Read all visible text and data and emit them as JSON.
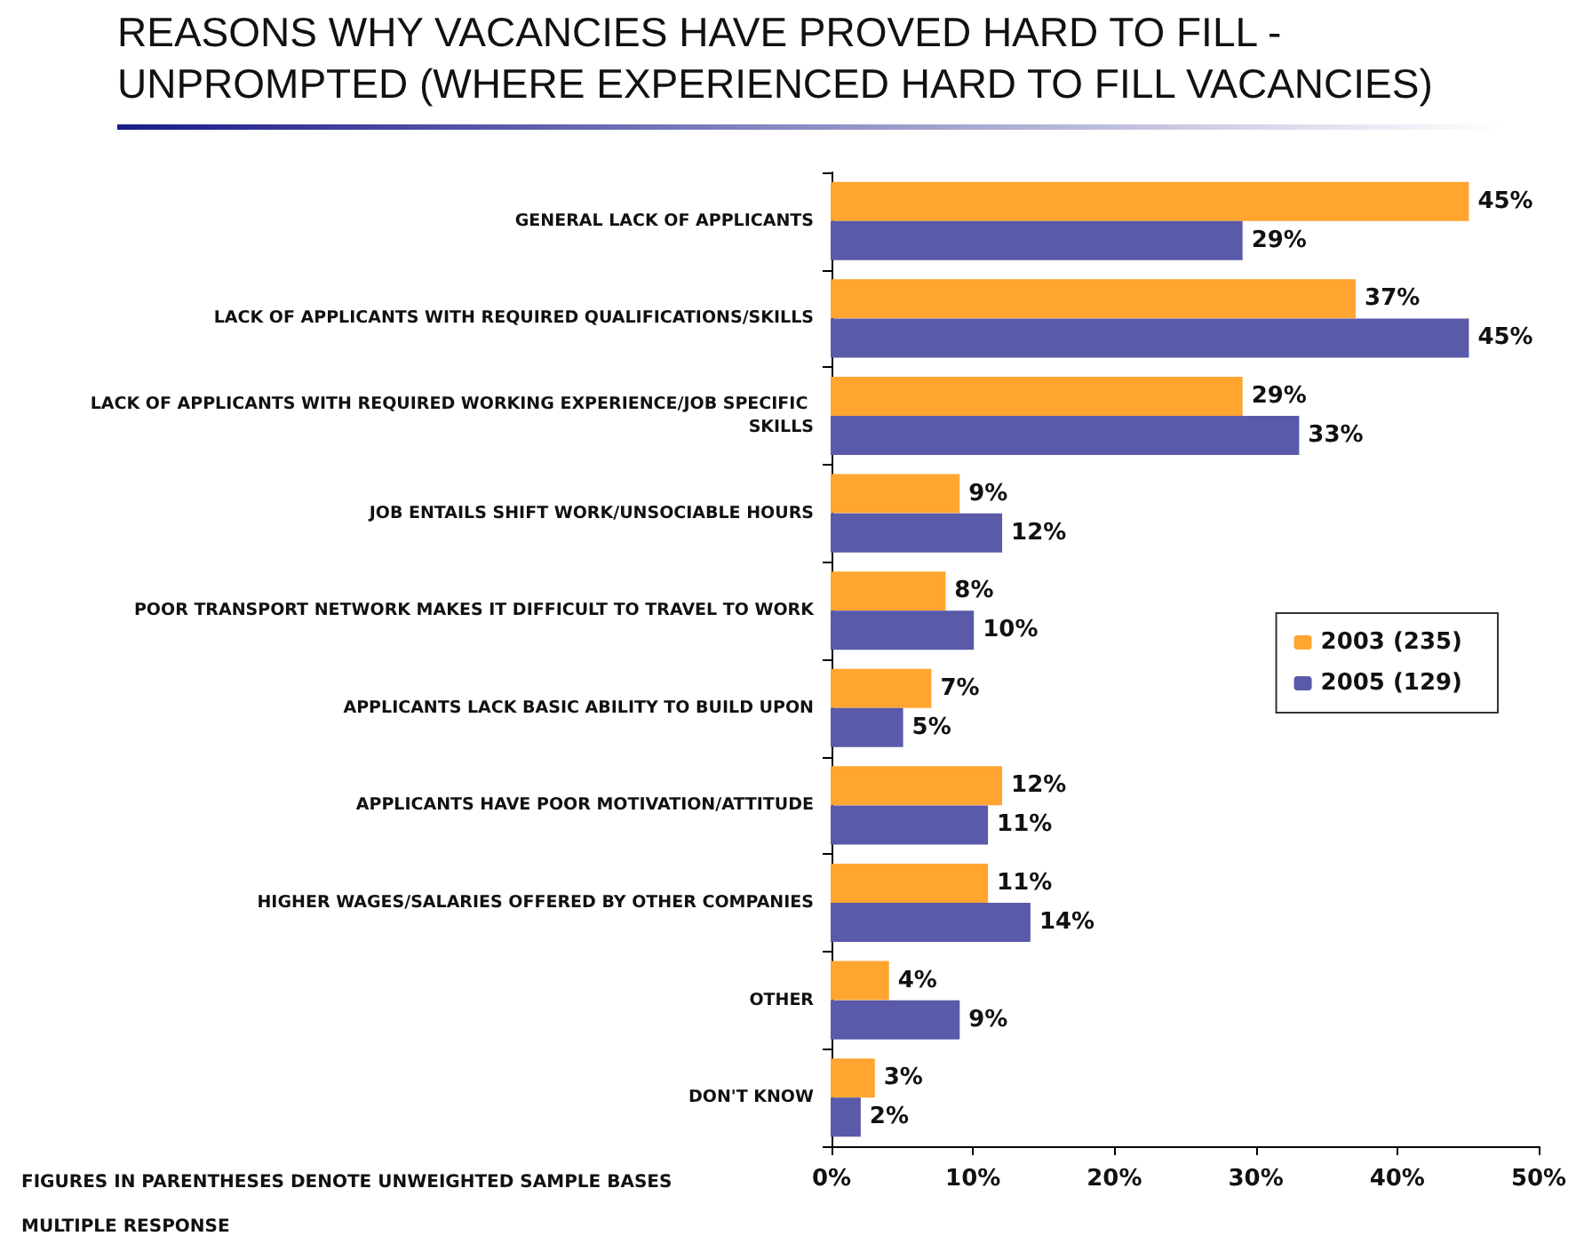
{
  "chart_data": {
    "type": "bar",
    "orientation": "horizontal",
    "title": "REASONS WHY VACANCIES HAVE PROVED HARD TO FILL -\nUNPROMPTED (WHERE EXPERIENCED HARD TO FILL VACANCIES)",
    "categories": [
      "GENERAL LACK OF APPLICANTS",
      "LACK OF APPLICANTS WITH REQUIRED QUALIFICATIONS/SKILLS",
      "LACK OF APPLICANTS WITH REQUIRED WORKING EXPERIENCE/JOB SPECIFIC SKILLS",
      "JOB ENTAILS SHIFT WORK/UNSOCIABLE HOURS",
      "POOR TRANSPORT NETWORK MAKES IT DIFFICULT TO TRAVEL TO WORK",
      "APPLICANTS LACK BASIC ABILITY TO BUILD UPON",
      "APPLICANTS HAVE POOR MOTIVATION/ATTITUDE",
      "HIGHER WAGES/SALARIES OFFERED BY OTHER COMPANIES",
      "OTHER",
      "DON'T KNOW"
    ],
    "series": [
      {
        "name": "2003 (235)",
        "color": "#ffa530",
        "values": [
          45,
          37,
          29,
          9,
          8,
          7,
          12,
          11,
          4,
          3
        ],
        "value_labels": [
          "45%",
          "37%",
          "29%",
          "9%",
          "8%",
          "7%",
          "12%",
          "11%",
          "4%",
          "3%"
        ]
      },
      {
        "name": "2005 (129)",
        "color": "#5a5aaa",
        "values": [
          29,
          45,
          33,
          12,
          10,
          5,
          11,
          14,
          9,
          2
        ],
        "value_labels": [
          "29%",
          "45%",
          "33%",
          "12%",
          "10%",
          "5%",
          "11%",
          "14%",
          "9%",
          "2%"
        ]
      }
    ],
    "xlim": [
      0,
      50
    ],
    "xticks": [
      {
        "value": 0,
        "label": "0%"
      },
      {
        "value": 10,
        "label": "10%"
      },
      {
        "value": 20,
        "label": "20%"
      },
      {
        "value": 30,
        "label": "30%"
      },
      {
        "value": 40,
        "label": "40%"
      },
      {
        "value": 50,
        "label": "50%"
      }
    ],
    "grid": false,
    "legend": "right",
    "annotations": [
      "FIGURES IN PARENTHESES DENOTE UNWEIGHTED SAMPLE BASES",
      "MULTIPLE RESPONSE"
    ]
  }
}
